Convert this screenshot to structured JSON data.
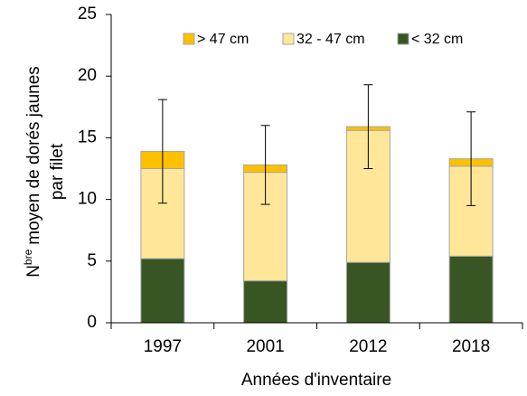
{
  "chart_data": {
    "type": "bar",
    "stacked": true,
    "x_label": "Années d'inventaire",
    "y_label": {
      "prefix": "N",
      "superscript": "bre",
      "line1": "moyen de dorés jaunes",
      "line2": "par filet"
    },
    "categories": [
      "1997",
      "2001",
      "2012",
      "2018"
    ],
    "series": [
      {
        "name": "< 32 cm",
        "color": "#375623",
        "values": [
          5.2,
          3.4,
          4.9,
          5.4
        ]
      },
      {
        "name": "32 - 47 cm",
        "color": "#ffe699",
        "values": [
          7.3,
          8.8,
          10.7,
          7.3
        ]
      },
      {
        "name": "> 47 cm",
        "color": "#ffc000",
        "values": [
          1.4,
          0.6,
          0.3,
          0.6
        ]
      }
    ],
    "errors": [
      4.2,
      3.2,
      3.4,
      3.8
    ],
    "ylim": [
      0,
      25
    ],
    "yticks": [
      0,
      5,
      10,
      15,
      20,
      25
    ],
    "legend": "top"
  }
}
